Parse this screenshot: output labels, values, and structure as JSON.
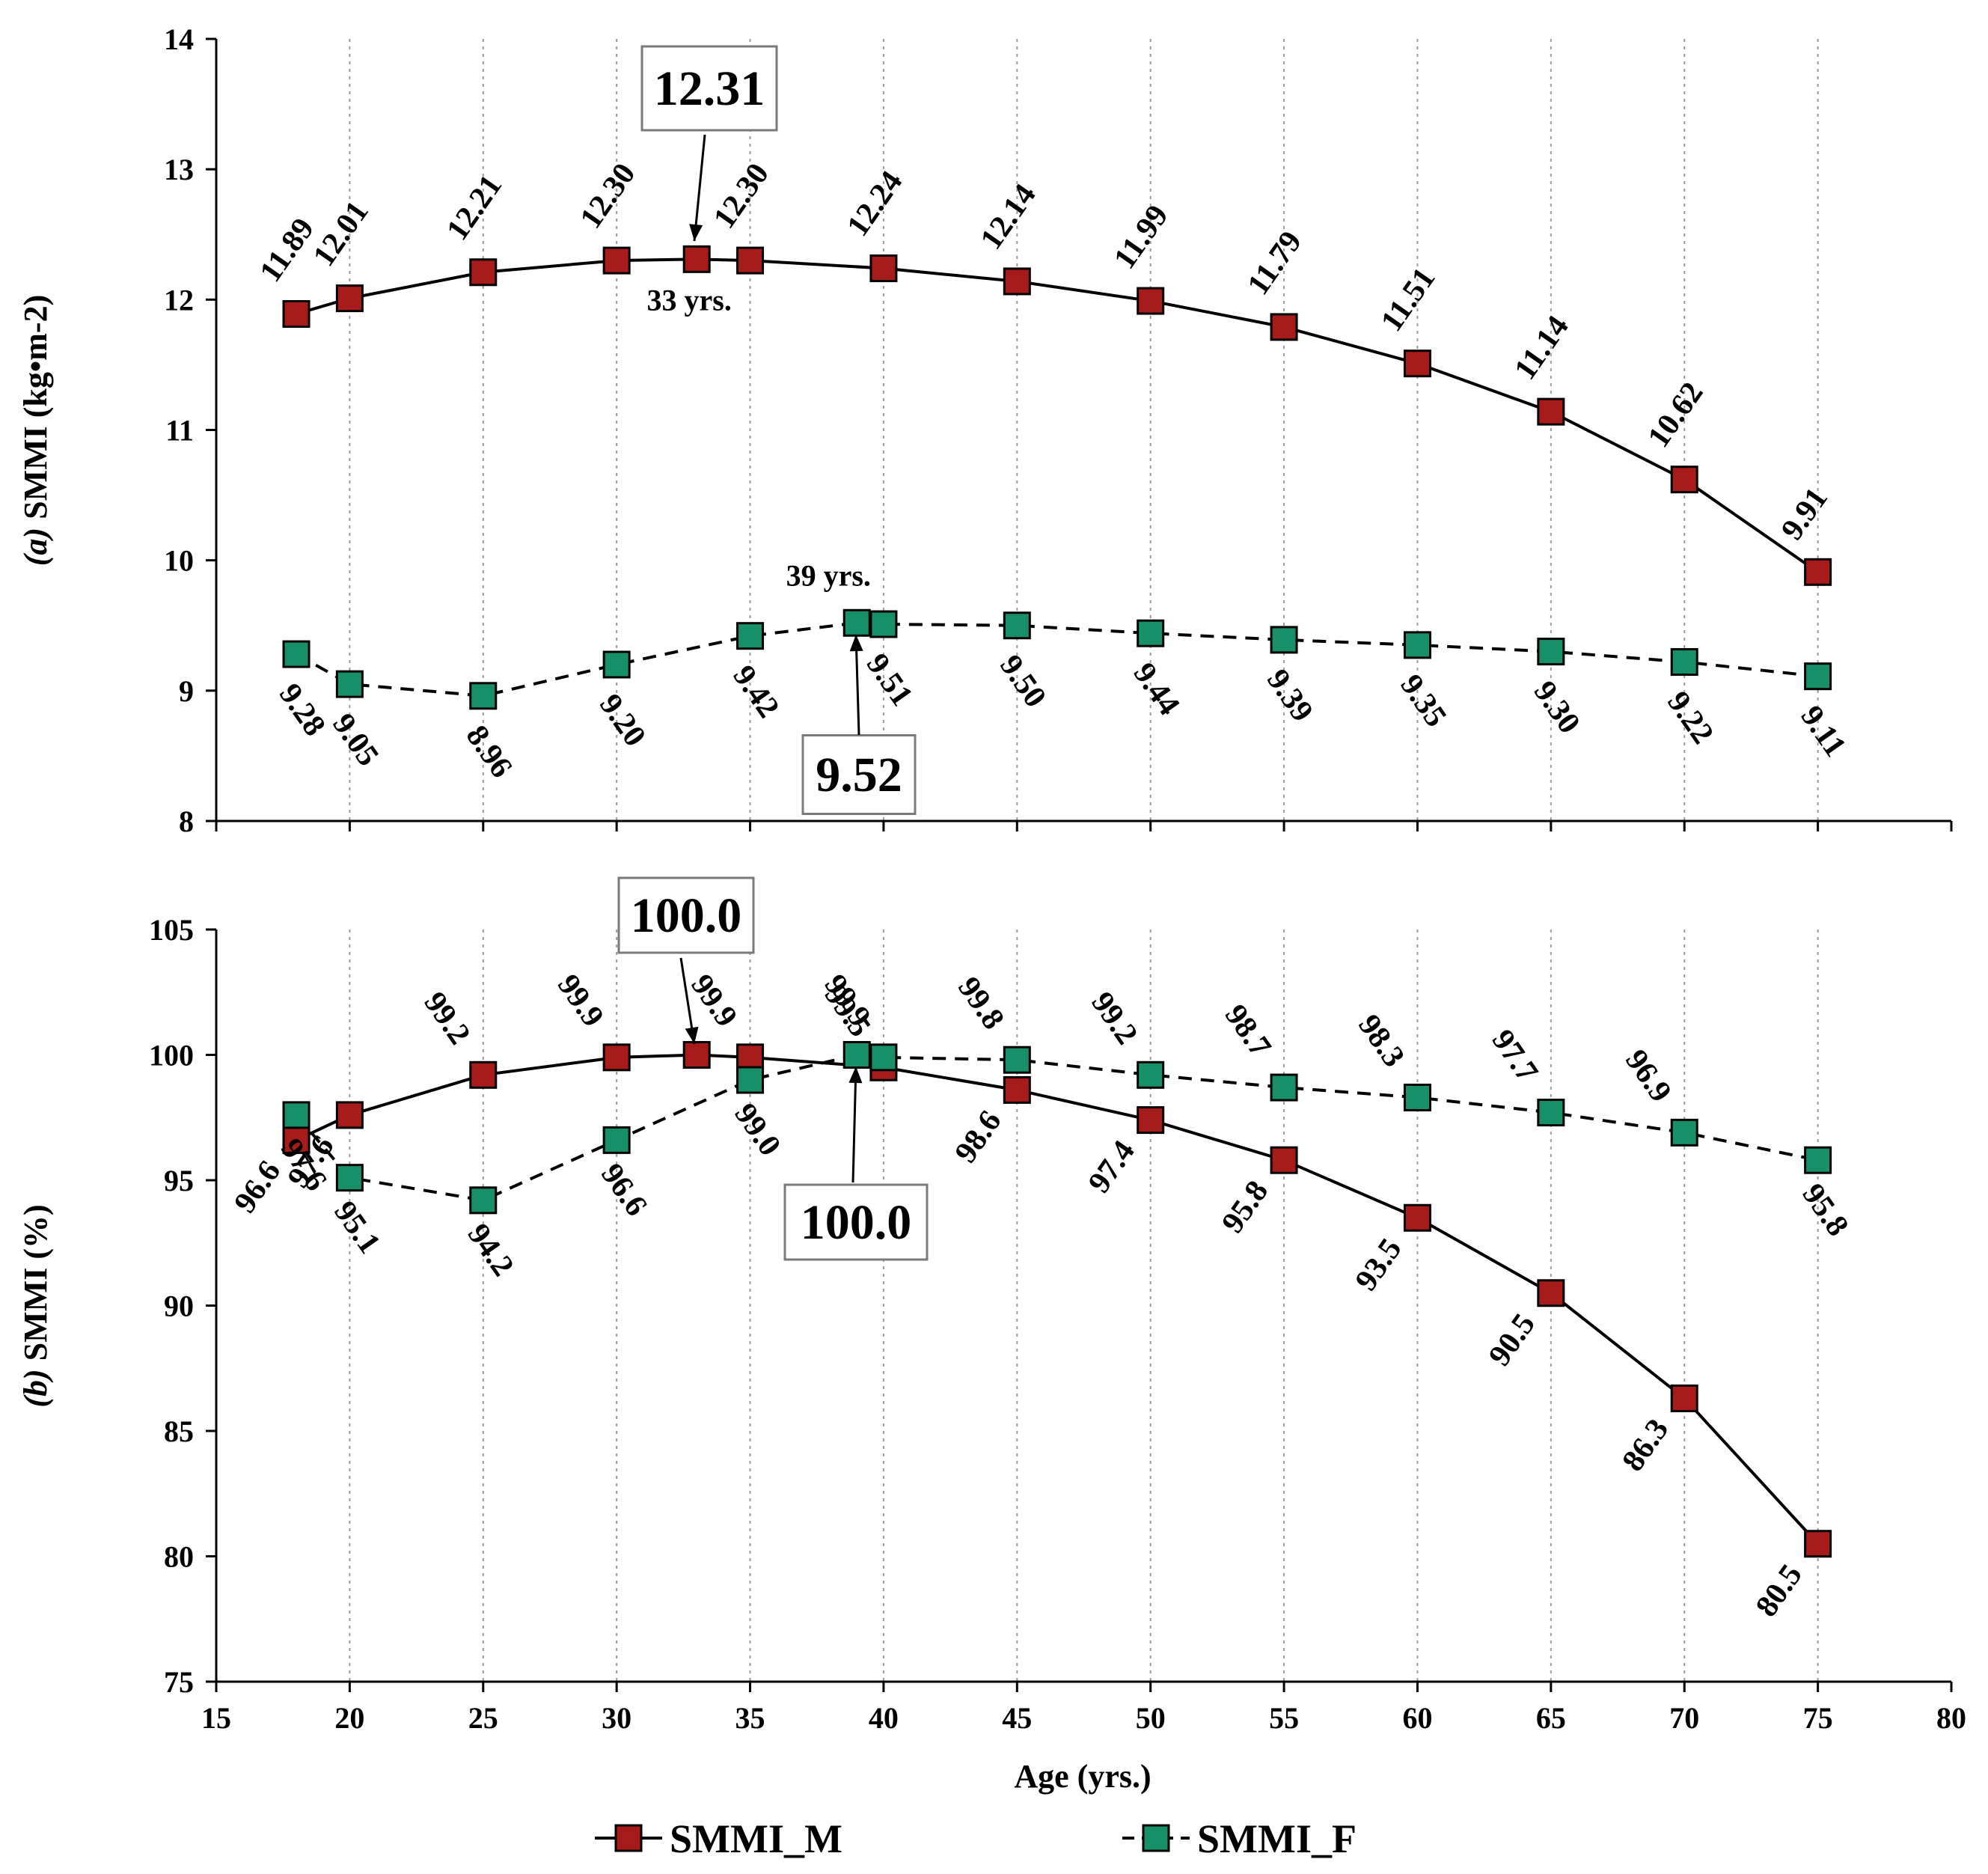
{
  "chart_data": [
    {
      "type": "line",
      "panel_id": "a",
      "ylabel_prefix": "(a)",
      "ylabel": "SMMI (kg•m-2)",
      "ylim": [
        8,
        14
      ],
      "yticks": [
        8,
        9,
        10,
        11,
        12,
        13,
        14
      ],
      "xlim": [
        15,
        80
      ],
      "grid": "vertical dotted",
      "series": [
        {
          "name": "SMMI_M",
          "color": "#A81B1B",
          "line": "solid",
          "x": [
            18,
            20,
            25,
            30,
            33,
            35,
            40,
            45,
            50,
            55,
            60,
            65,
            70,
            75
          ],
          "values": [
            11.89,
            12.01,
            12.21,
            12.3,
            12.31,
            12.3,
            12.24,
            12.14,
            11.99,
            11.79,
            11.51,
            11.14,
            10.62,
            9.91
          ],
          "labels": [
            "11.89",
            "12.01",
            "12.21",
            "12.30",
            "",
            "12.30",
            "12.24",
            "12.14",
            "11.99",
            "11.79",
            "11.51",
            "11.14",
            "10.62",
            "9.91"
          ]
        },
        {
          "name": "SMMI_F",
          "color": "#179069",
          "line": "dashed",
          "x": [
            18,
            20,
            25,
            30,
            35,
            39,
            40,
            45,
            50,
            55,
            60,
            65,
            70,
            75
          ],
          "values": [
            9.28,
            9.05,
            8.96,
            9.2,
            9.42,
            9.52,
            9.51,
            9.5,
            9.44,
            9.39,
            9.35,
            9.3,
            9.22,
            9.11
          ],
          "labels": [
            "9.28",
            "9.05",
            "8.96",
            "9.20",
            "9.42",
            "",
            "9.51",
            "9.50",
            "9.44",
            "9.39",
            "9.35",
            "9.30",
            "9.22",
            "9.11"
          ]
        }
      ],
      "annotations": [
        {
          "text": "12.31",
          "x": 33,
          "y": 12.31,
          "series": "SMMI_M",
          "note": "33 yrs."
        },
        {
          "text": "9.52",
          "x": 39,
          "y": 9.52,
          "series": "SMMI_F",
          "note": "39 yrs."
        }
      ]
    },
    {
      "type": "line",
      "panel_id": "b",
      "ylabel_prefix": "(b)",
      "ylabel": "SMMI (%)",
      "ylim": [
        75,
        105
      ],
      "yticks": [
        75,
        80,
        85,
        90,
        95,
        100,
        105
      ],
      "xlim": [
        15,
        80
      ],
      "xticks": [
        15,
        20,
        25,
        30,
        35,
        40,
        45,
        50,
        55,
        60,
        65,
        70,
        75,
        80
      ],
      "xlabel": "Age (yrs.)",
      "grid": "vertical dotted",
      "series": [
        {
          "name": "SMMI_M",
          "color": "#A81B1B",
          "line": "solid",
          "x": [
            18,
            20,
            25,
            30,
            33,
            35,
            40,
            45,
            50,
            55,
            60,
            65,
            70,
            75
          ],
          "values": [
            96.6,
            97.6,
            99.2,
            99.9,
            100.0,
            99.9,
            99.5,
            98.6,
            97.4,
            95.8,
            93.5,
            90.5,
            86.3,
            80.5
          ],
          "labels": [
            "96.6",
            "97.6",
            "99.2",
            "99.9",
            "",
            "99.9",
            "99.5",
            "98.6",
            "97.4",
            "95.8",
            "93.5",
            "90.5",
            "86.3",
            "80.5"
          ]
        },
        {
          "name": "SMMI_F",
          "color": "#179069",
          "line": "dashed",
          "x": [
            18,
            20,
            25,
            30,
            35,
            39,
            40,
            45,
            50,
            55,
            60,
            65,
            70,
            75
          ],
          "values": [
            97.6,
            95.1,
            94.2,
            96.6,
            99.0,
            100.0,
            99.9,
            99.8,
            99.2,
            98.7,
            98.3,
            97.7,
            96.9,
            95.8
          ],
          "labels": [
            "97.6",
            "95.1",
            "94.2",
            "96.6",
            "99.0",
            "",
            "99.9",
            "99.8",
            "99.2",
            "98.7",
            "98.3",
            "97.7",
            "96.9",
            "95.8"
          ]
        }
      ],
      "annotations": [
        {
          "text": "100.0",
          "x": 33,
          "y": 100.0,
          "series": "SMMI_M"
        },
        {
          "text": "100.0",
          "x": 39,
          "y": 100.0,
          "series": "SMMI_F"
        }
      ]
    }
  ],
  "legend": {
    "position": "bottom-center",
    "items": [
      {
        "label": "SMMI_M",
        "color": "#A81B1B",
        "line": "solid"
      },
      {
        "label": "SMMI_F",
        "color": "#179069",
        "line": "dashed"
      }
    ]
  }
}
